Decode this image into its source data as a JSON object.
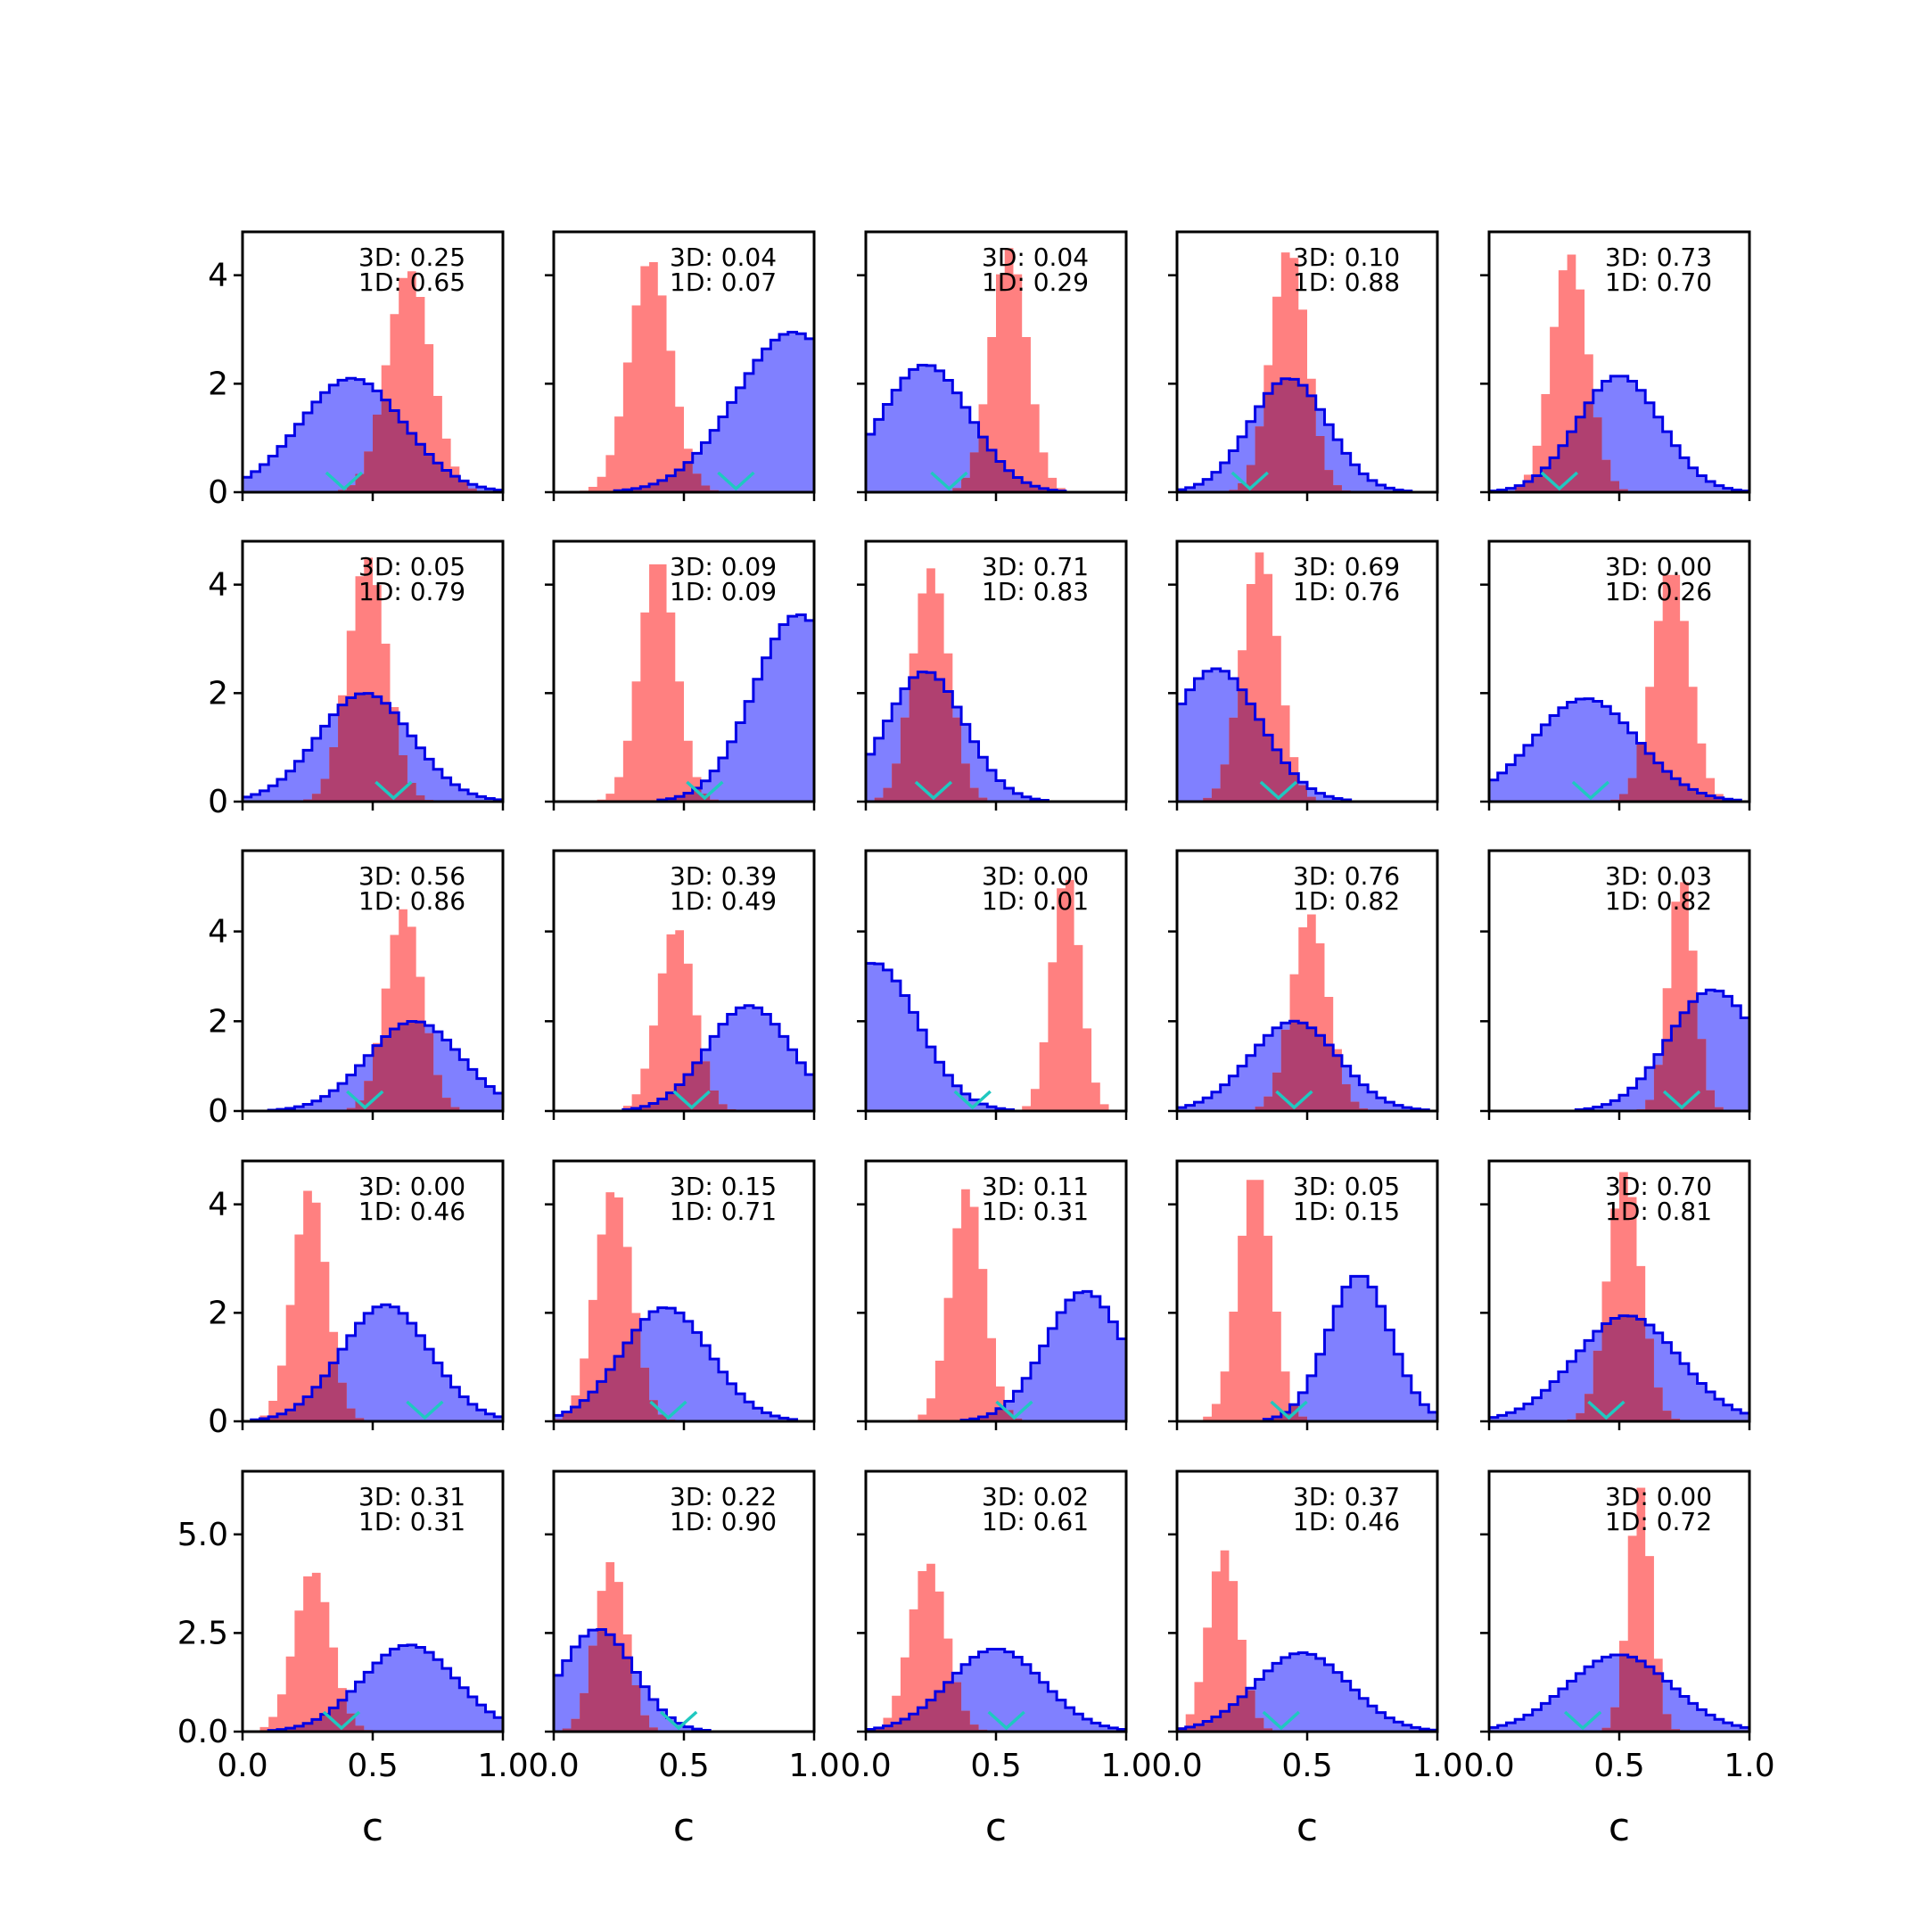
{
  "chart_data": {
    "type": "histogram-grid",
    "rows": 5,
    "cols": 5,
    "xlim": [
      0.0,
      1.0
    ],
    "x_ticks": [
      "0.0",
      "0.5",
      "1.0"
    ],
    "xlabel": "c",
    "row_ylims": [
      [
        0,
        4.8
      ],
      [
        0,
        4.8
      ],
      [
        0,
        5.8
      ],
      [
        0,
        4.8
      ],
      [
        0,
        6.6
      ]
    ],
    "row_yticks": [
      {
        "values": [
          0,
          2,
          4
        ],
        "labels": [
          "0",
          "2",
          "4"
        ]
      },
      {
        "values": [
          0,
          2,
          4
        ],
        "labels": [
          "0",
          "2",
          "4"
        ]
      },
      {
        "values": [
          0,
          2,
          4
        ],
        "labels": [
          "0",
          "2",
          "4"
        ]
      },
      {
        "values": [
          0,
          2,
          4
        ],
        "labels": [
          "0",
          "2",
          "4"
        ]
      },
      {
        "values": [
          0,
          2.5,
          5.0
        ],
        "labels": [
          "0.0",
          "2.5",
          "5.0"
        ]
      }
    ],
    "colors": {
      "blue_fill": "#8080ff",
      "blue_edge": "#0000e6",
      "red_fill": "#ff8080",
      "overlap_fill": "#b04070",
      "overlap_edge": "#600070",
      "marker": "#1fc8c0"
    },
    "panels": [
      {
        "label_3d": "3D: 0.25",
        "label_1d": "1D: 0.65",
        "blue": {
          "mean": 0.42,
          "sd": 0.2,
          "peak": 2.1
        },
        "red": {
          "mean": 0.64,
          "sd": 0.085,
          "peak": 4.1
        },
        "marker": 0.39
      },
      {
        "label_3d": "3D: 0.04",
        "label_1d": "1D: 0.07",
        "blue": {
          "mean": 0.92,
          "sd": 0.22,
          "peak": 2.95
        },
        "red": {
          "mean": 0.37,
          "sd": 0.08,
          "peak": 4.3
        },
        "marker": 0.7
      },
      {
        "label_3d": "3D: 0.04",
        "label_1d": "1D: 0.29",
        "blue": {
          "mean": 0.23,
          "sd": 0.17,
          "peak": 2.35
        },
        "red": {
          "mean": 0.55,
          "sd": 0.07,
          "peak": 4.5
        },
        "marker": 0.32
      },
      {
        "label_3d": "3D: 0.10",
        "label_1d": "1D: 0.88",
        "blue": {
          "mean": 0.43,
          "sd": 0.15,
          "peak": 2.1
        },
        "red": {
          "mean": 0.43,
          "sd": 0.07,
          "peak": 4.5
        },
        "marker": 0.28
      },
      {
        "label_3d": "3D: 0.73",
        "label_1d": "1D: 0.70",
        "blue": {
          "mean": 0.5,
          "sd": 0.16,
          "peak": 2.15
        },
        "red": {
          "mean": 0.31,
          "sd": 0.07,
          "peak": 4.4
        },
        "marker": 0.27
      },
      {
        "label_3d": "3D: 0.05",
        "label_1d": "1D: 0.79",
        "blue": {
          "mean": 0.47,
          "sd": 0.18,
          "peak": 2.0
        },
        "red": {
          "mean": 0.48,
          "sd": 0.075,
          "peak": 4.5
        },
        "marker": 0.58
      },
      {
        "label_3d": "3D: 0.09",
        "label_1d": "1D: 0.09",
        "blue": {
          "mean": 0.94,
          "sd": 0.17,
          "peak": 3.45
        },
        "red": {
          "mean": 0.4,
          "sd": 0.07,
          "peak": 4.5
        },
        "marker": 0.58
      },
      {
        "label_3d": "3D: 0.71",
        "label_1d": "1D: 0.83",
        "blue": {
          "mean": 0.23,
          "sd": 0.15,
          "peak": 2.4
        },
        "red": {
          "mean": 0.25,
          "sd": 0.07,
          "peak": 4.3
        },
        "marker": 0.26
      },
      {
        "label_3d": "3D: 0.69",
        "label_1d": "1D: 0.76",
        "blue": {
          "mean": 0.15,
          "sd": 0.17,
          "peak": 2.45
        },
        "red": {
          "mean": 0.32,
          "sd": 0.07,
          "peak": 4.6
        },
        "marker": 0.39
      },
      {
        "label_3d": "3D: 0.00",
        "label_1d": "1D: 0.26",
        "blue": {
          "mean": 0.37,
          "sd": 0.2,
          "peak": 1.9
        },
        "red": {
          "mean": 0.7,
          "sd": 0.07,
          "peak": 4.3
        },
        "marker": 0.39
      },
      {
        "label_3d": "3D: 0.56",
        "label_1d": "1D: 0.86",
        "blue": {
          "mean": 0.66,
          "sd": 0.18,
          "peak": 2.0
        },
        "red": {
          "mean": 0.62,
          "sd": 0.07,
          "peak": 4.5
        },
        "marker": 0.47
      },
      {
        "label_3d": "3D: 0.39",
        "label_1d": "1D: 0.49",
        "blue": {
          "mean": 0.75,
          "sd": 0.16,
          "peak": 2.35
        },
        "red": {
          "mean": 0.47,
          "sd": 0.07,
          "peak": 4.1
        },
        "marker": 0.53
      },
      {
        "label_3d": "3D: 0.00",
        "label_1d": "1D: 0.01",
        "blue": {
          "mean": 0.03,
          "sd": 0.17,
          "peak": 3.3
        },
        "red": {
          "mean": 0.77,
          "sd": 0.055,
          "peak": 5.3
        },
        "marker": 0.41
      },
      {
        "label_3d": "3D: 0.76",
        "label_1d": "1D: 0.82",
        "blue": {
          "mean": 0.45,
          "sd": 0.17,
          "peak": 2.0
        },
        "red": {
          "mean": 0.51,
          "sd": 0.07,
          "peak": 4.4
        },
        "marker": 0.45
      },
      {
        "label_3d": "3D: 0.03",
        "label_1d": "1D: 0.82",
        "blue": {
          "mean": 0.86,
          "sd": 0.17,
          "peak": 2.7
        },
        "red": {
          "mean": 0.74,
          "sd": 0.05,
          "peak": 5.2
        },
        "marker": 0.74
      },
      {
        "label_3d": "3D: 0.00",
        "label_1d": "1D: 0.46",
        "blue": {
          "mean": 0.55,
          "sd": 0.17,
          "peak": 2.15
        },
        "red": {
          "mean": 0.26,
          "sd": 0.065,
          "peak": 4.3
        },
        "marker": 0.7
      },
      {
        "label_3d": "3D: 0.15",
        "label_1d": "1D: 0.71",
        "blue": {
          "mean": 0.43,
          "sd": 0.17,
          "peak": 2.1
        },
        "red": {
          "mean": 0.23,
          "sd": 0.07,
          "peak": 4.3
        },
        "marker": 0.44
      },
      {
        "label_3d": "3D: 0.11",
        "label_1d": "1D: 0.31",
        "blue": {
          "mean": 0.84,
          "sd": 0.15,
          "peak": 2.4
        },
        "red": {
          "mean": 0.39,
          "sd": 0.065,
          "peak": 4.3
        },
        "marker": 0.57
      },
      {
        "label_3d": "3D: 0.05",
        "label_1d": "1D: 0.15",
        "blue": {
          "mean": 0.7,
          "sd": 0.12,
          "peak": 2.7
        },
        "red": {
          "mean": 0.3,
          "sd": 0.065,
          "peak": 4.6
        },
        "marker": 0.43
      },
      {
        "label_3d": "3D: 0.70",
        "label_1d": "1D: 0.81",
        "blue": {
          "mean": 0.53,
          "sd": 0.2,
          "peak": 1.95
        },
        "red": {
          "mean": 0.52,
          "sd": 0.065,
          "peak": 4.6
        },
        "marker": 0.45
      },
      {
        "label_3d": "3D: 0.31",
        "label_1d": "1D: 0.31",
        "blue": {
          "mean": 0.64,
          "sd": 0.18,
          "peak": 2.2
        },
        "red": {
          "mean": 0.27,
          "sd": 0.07,
          "peak": 4.1
        },
        "marker": 0.38
      },
      {
        "label_3d": "3D: 0.22",
        "label_1d": "1D: 0.90",
        "blue": {
          "mean": 0.17,
          "sd": 0.14,
          "peak": 2.6
        },
        "red": {
          "mean": 0.22,
          "sd": 0.06,
          "peak": 4.3
        },
        "marker": 0.48
      },
      {
        "label_3d": "3D: 0.02",
        "label_1d": "1D: 0.61",
        "blue": {
          "mean": 0.5,
          "sd": 0.18,
          "peak": 2.1
        },
        "red": {
          "mean": 0.24,
          "sd": 0.07,
          "peak": 4.3
        },
        "marker": 0.54
      },
      {
        "label_3d": "3D: 0.37",
        "label_1d": "1D: 0.46",
        "blue": {
          "mean": 0.48,
          "sd": 0.18,
          "peak": 2.0
        },
        "red": {
          "mean": 0.18,
          "sd": 0.06,
          "peak": 4.6
        },
        "marker": 0.4
      },
      {
        "label_3d": "3D: 0.00",
        "label_1d": "1D: 0.72",
        "blue": {
          "mean": 0.5,
          "sd": 0.2,
          "peak": 1.95
        },
        "red": {
          "mean": 0.58,
          "sd": 0.045,
          "peak": 6.2
        },
        "marker": 0.36
      }
    ]
  }
}
